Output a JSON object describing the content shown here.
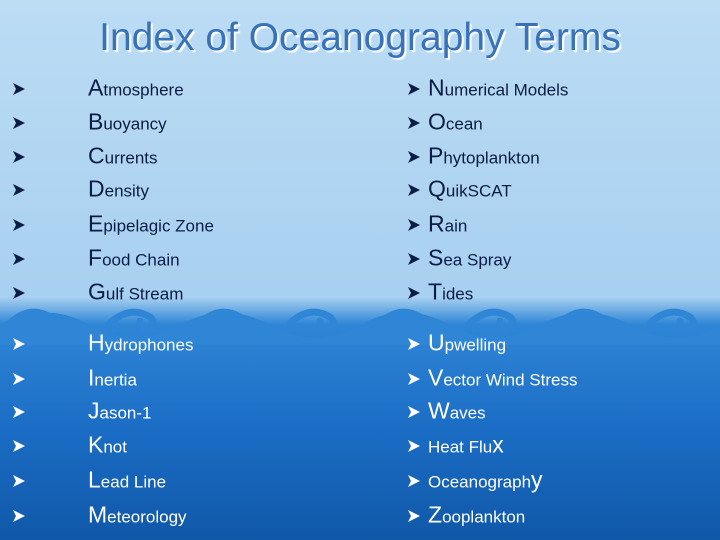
{
  "title": "Index of Oceanography Terms",
  "left_column": [
    "Atmosphere",
    "Buoyancy",
    "Currents",
    "Density",
    "Epipelagic Zone",
    "Food Chain",
    "Gulf Stream",
    "Hydrophones",
    "Inertia",
    "Jason-1",
    "Knot",
    "Lead Line",
    "Meteorology"
  ],
  "right_column": [
    "Numerical Models",
    "Ocean",
    "Phytoplankton",
    "QuikSCAT",
    "Rain",
    "Sea Spray",
    "Tides",
    "Upwelling",
    "Vector Wind Stress",
    "Waves",
    "Heat Flux",
    "Oceanography",
    "Zooplankton"
  ]
}
